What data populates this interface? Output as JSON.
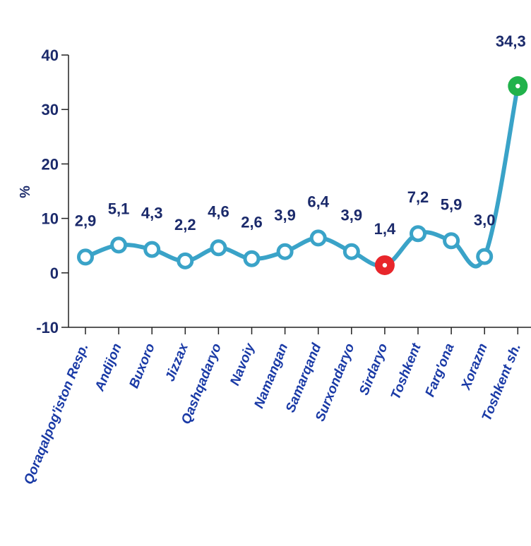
{
  "chart_data": {
    "type": "line",
    "categories": [
      "Qoraqalpog'iston Resp.",
      "Andijon",
      "Buxoro",
      "Jizzax",
      "Qashqadaryo",
      "Navoiy",
      "Namangan",
      "Samarqand",
      "Surxondaryo",
      "Sirdaryo",
      "Toshkent",
      "Farg'ona",
      "Xorazm",
      "Toshkent sh."
    ],
    "values": [
      2.9,
      5.1,
      4.3,
      2.2,
      4.6,
      2.6,
      3.9,
      6.4,
      3.9,
      1.4,
      7.2,
      5.9,
      3.0,
      34.3
    ],
    "value_labels": [
      "2,9",
      "5,1",
      "4,3",
      "2,2",
      "4,6",
      "2,6",
      "3,9",
      "6,4",
      "3,9",
      "1,4",
      "7,2",
      "5,9",
      "3,0",
      "34,3"
    ],
    "ylabel": "%",
    "ylim": [
      -10,
      40
    ],
    "yticks": [
      40,
      30,
      20,
      10,
      0,
      -10
    ],
    "ytick_labels": [
      "40",
      "30",
      "20",
      "10",
      "0",
      "-10"
    ],
    "grid": false,
    "colors": {
      "line": "#3aa3c8",
      "marker_fill": "#ffffff",
      "min_marker": "#e8262b",
      "max_marker": "#21b24b",
      "text": "#1b2a6b",
      "category_text": "#1a3aa6"
    },
    "highlight": {
      "min_index": 9,
      "max_index": 13
    }
  }
}
